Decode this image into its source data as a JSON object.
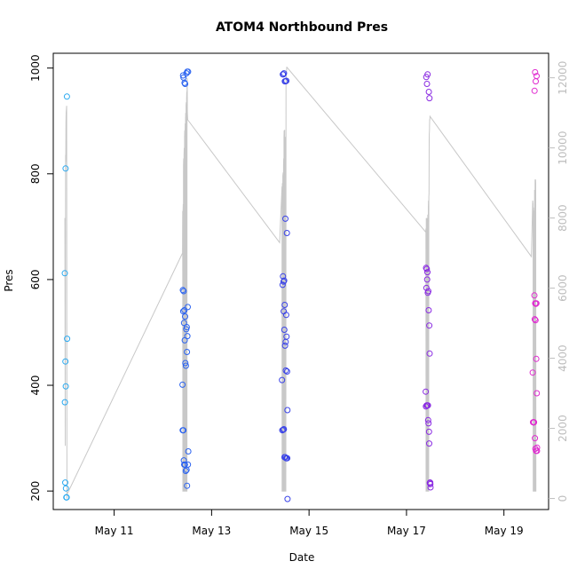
{
  "chart_data": {
    "type": "scatter",
    "title": "ATOM4 Northbound Pres",
    "xlabel": "Date",
    "ylabel": "Pres",
    "x_date_range": [
      "2021-05-09T18:00",
      "2021-05-19T22:00"
    ],
    "ylim": [
      165,
      1028
    ],
    "x_ticks": [
      "May 11",
      "May 13",
      "May 15",
      "May 17",
      "May 19"
    ],
    "y_ticks": [
      200,
      400,
      600,
      800,
      1000
    ],
    "secondary_axis": {
      "side": "right",
      "color": "#bdbdbd",
      "ticks": [
        0,
        2000,
        4000,
        6000,
        8000,
        10000,
        12000
      ],
      "ylim": [
        -315,
        12700
      ]
    },
    "grid": false,
    "point_style": "open-circle",
    "series": [
      {
        "color": "#29a9f0",
        "points": [
          [
            "2021-05-09T23:40",
            612
          ],
          [
            "2021-05-09T23:45",
            368
          ],
          [
            "2021-05-09T23:55",
            216
          ],
          [
            "2021-05-10T00:00",
            445
          ],
          [
            "2021-05-10T00:05",
            810
          ],
          [
            "2021-05-10T00:10",
            398
          ],
          [
            "2021-05-10T00:15",
            205
          ],
          [
            "2021-05-10T00:25",
            188
          ],
          [
            "2021-05-10T00:30",
            188
          ],
          [
            "2021-05-10T00:35",
            188
          ],
          [
            "2021-05-10T00:45",
            946
          ],
          [
            "2021-05-10T00:50",
            488
          ]
        ]
      },
      {
        "color": "#2b63f0",
        "points": [
          [
            "2021-05-12T09:40",
            401
          ],
          [
            "2021-05-12T09:45",
            315
          ],
          [
            "2021-05-12T09:50",
            580
          ],
          [
            "2021-05-12T09:55",
            986
          ],
          [
            "2021-05-12T10:00",
            540
          ],
          [
            "2021-05-12T10:05",
            315
          ],
          [
            "2021-05-12T10:10",
            982
          ],
          [
            "2021-05-12T10:15",
            578
          ],
          [
            "2021-05-12T10:20",
            258
          ],
          [
            "2021-05-12T10:25",
            518
          ],
          [
            "2021-05-12T10:30",
            250
          ],
          [
            "2021-05-12T10:35",
            542
          ],
          [
            "2021-05-12T10:40",
            972
          ],
          [
            "2021-05-12T10:45",
            485
          ],
          [
            "2021-05-12T10:50",
            250
          ],
          [
            "2021-05-12T10:55",
            530
          ],
          [
            "2021-05-12T11:00",
            970
          ],
          [
            "2021-05-12T11:05",
            442
          ],
          [
            "2021-05-12T11:15",
            238
          ],
          [
            "2021-05-12T11:20",
            437
          ],
          [
            "2021-05-12T11:30",
            506
          ],
          [
            "2021-05-12T11:35",
            990
          ],
          [
            "2021-05-12T11:40",
            240
          ],
          [
            "2021-05-12T11:45",
            510
          ],
          [
            "2021-05-12T11:50",
            463
          ],
          [
            "2021-05-12T11:55",
            210
          ],
          [
            "2021-05-12T12:00",
            993
          ],
          [
            "2021-05-12T12:05",
            493
          ],
          [
            "2021-05-12T12:15",
            548
          ],
          [
            "2021-05-12T12:20",
            250
          ],
          [
            "2021-05-12T12:25",
            993
          ],
          [
            "2021-05-12T12:30",
            275
          ]
        ]
      },
      {
        "color": "#3a43e8",
        "points": [
          [
            "2021-05-14T10:40",
            410
          ],
          [
            "2021-05-14T10:50",
            315
          ],
          [
            "2021-05-14T11:00",
            590
          ],
          [
            "2021-05-14T11:05",
            988
          ],
          [
            "2021-05-14T11:10",
            606
          ],
          [
            "2021-05-14T11:15",
            316
          ],
          [
            "2021-05-14T11:20",
            988
          ],
          [
            "2021-05-14T11:25",
            596
          ],
          [
            "2021-05-14T11:30",
            540
          ],
          [
            "2021-05-14T11:35",
            317
          ],
          [
            "2021-05-14T11:40",
            990
          ],
          [
            "2021-05-14T11:45",
            598
          ],
          [
            "2021-05-14T11:50",
            505
          ],
          [
            "2021-05-14T11:55",
            264
          ],
          [
            "2021-05-14T12:00",
            552
          ],
          [
            "2021-05-14T12:05",
            975
          ],
          [
            "2021-05-14T12:10",
            475
          ],
          [
            "2021-05-14T12:15",
            264
          ],
          [
            "2021-05-14T12:20",
            715
          ],
          [
            "2021-05-14T12:25",
            975
          ],
          [
            "2021-05-14T12:30",
            482
          ],
          [
            "2021-05-14T12:35",
            428
          ],
          [
            "2021-05-14T12:40",
            262
          ],
          [
            "2021-05-14T12:45",
            533
          ],
          [
            "2021-05-14T12:50",
            976
          ],
          [
            "2021-05-14T12:55",
            492
          ],
          [
            "2021-05-14T13:00",
            262
          ],
          [
            "2021-05-14T13:05",
            688
          ],
          [
            "2021-05-14T13:10",
            426
          ],
          [
            "2021-05-14T13:15",
            262
          ],
          [
            "2021-05-14T13:20",
            353
          ],
          [
            "2021-05-14T13:25",
            185
          ]
        ]
      },
      {
        "color": "#8a2be2",
        "points": [
          [
            "2021-05-17T09:30",
            388
          ],
          [
            "2021-05-17T09:35",
            360
          ],
          [
            "2021-05-17T09:40",
            622
          ],
          [
            "2021-05-17T09:45",
            983
          ],
          [
            "2021-05-17T09:50",
            584
          ],
          [
            "2021-05-17T09:55",
            362
          ],
          [
            "2021-05-17T10:00",
            620
          ],
          [
            "2021-05-17T10:05",
            970
          ],
          [
            "2021-05-17T10:10",
            600
          ],
          [
            "2021-05-17T10:15",
            362
          ],
          [
            "2021-05-17T10:20",
            614
          ],
          [
            "2021-05-17T10:25",
            988
          ],
          [
            "2021-05-17T10:30",
            575
          ],
          [
            "2021-05-17T10:35",
            362
          ],
          [
            "2021-05-17T10:40",
            334
          ],
          [
            "2021-05-17T10:45",
            578
          ],
          [
            "2021-05-17T10:50",
            328
          ],
          [
            "2021-05-17T10:55",
            542
          ],
          [
            "2021-05-17T11:00",
            955
          ],
          [
            "2021-05-17T11:05",
            312
          ],
          [
            "2021-05-17T11:10",
            290
          ],
          [
            "2021-05-17T11:15",
            513
          ],
          [
            "2021-05-17T11:20",
            943
          ],
          [
            "2021-05-17T11:25",
            460
          ],
          [
            "2021-05-17T11:30",
            215
          ],
          [
            "2021-05-17T11:35",
            216
          ],
          [
            "2021-05-17T11:40",
            216
          ],
          [
            "2021-05-17T11:45",
            213
          ],
          [
            "2021-05-17T11:50",
            207
          ]
        ]
      },
      {
        "color": "#e02bd0",
        "points": [
          [
            "2021-05-19T14:10",
            424
          ],
          [
            "2021-05-19T14:20",
            330
          ],
          [
            "2021-05-19T14:25",
            330
          ],
          [
            "2021-05-19T14:30",
            330
          ],
          [
            "2021-05-19T14:35",
            330
          ],
          [
            "2021-05-19T14:40",
            330
          ],
          [
            "2021-05-19T14:45",
            330
          ],
          [
            "2021-05-19T14:50",
            330
          ],
          [
            "2021-05-19T15:00",
            570
          ],
          [
            "2021-05-19T15:05",
            957
          ],
          [
            "2021-05-19T15:10",
            525
          ],
          [
            "2021-05-19T15:15",
            300
          ],
          [
            "2021-05-19T15:20",
            992
          ],
          [
            "2021-05-19T15:25",
            555
          ],
          [
            "2021-05-19T15:30",
            280
          ],
          [
            "2021-05-19T15:35",
            523
          ],
          [
            "2021-05-19T15:40",
            975
          ],
          [
            "2021-05-19T15:45",
            554
          ],
          [
            "2021-05-19T15:50",
            276
          ],
          [
            "2021-05-19T15:55",
            450
          ],
          [
            "2021-05-19T16:00",
            555
          ],
          [
            "2021-05-19T16:05",
            985
          ],
          [
            "2021-05-19T16:10",
            385
          ],
          [
            "2021-05-19T16:15",
            276
          ],
          [
            "2021-05-19T16:20",
            282
          ]
        ]
      }
    ],
    "depth_line": {
      "color": "#c8c8c8",
      "points": [
        [
          "2021-05-09T23:45",
          8000
        ],
        [
          "2021-05-09T23:55",
          1500
        ],
        [
          "2021-05-10T00:05",
          9800
        ],
        [
          "2021-05-10T00:10",
          9600
        ],
        [
          "2021-05-10T00:15",
          10700
        ],
        [
          "2021-05-10T00:20",
          11000
        ],
        [
          "2021-05-10T00:35",
          11200
        ],
        [
          "2021-05-10T00:45",
          0
        ],
        [
          "2021-05-10T00:50",
          120
        ],
        [
          "2021-05-12T09:40",
          7000
        ],
        [
          "2021-05-12T09:45",
          8200
        ],
        [
          "2021-05-12T09:50",
          200
        ],
        [
          "2021-05-12T09:55",
          8200
        ],
        [
          "2021-05-12T10:00",
          8400
        ],
        [
          "2021-05-12T10:05",
          200
        ],
        [
          "2021-05-12T10:10",
          9500
        ],
        [
          "2021-05-12T10:15",
          9700
        ],
        [
          "2021-05-12T10:20",
          200
        ],
        [
          "2021-05-12T10:25",
          9800
        ],
        [
          "2021-05-12T10:30",
          10000
        ],
        [
          "2021-05-12T10:35",
          200
        ],
        [
          "2021-05-12T10:40",
          10300
        ],
        [
          "2021-05-12T10:45",
          10500
        ],
        [
          "2021-05-12T10:50",
          200
        ],
        [
          "2021-05-12T10:55",
          10500
        ],
        [
          "2021-05-12T11:00",
          10700
        ],
        [
          "2021-05-12T11:05",
          200
        ],
        [
          "2021-05-12T11:10",
          10800
        ],
        [
          "2021-05-12T11:15",
          11000
        ],
        [
          "2021-05-12T11:20",
          200
        ],
        [
          "2021-05-12T11:25",
          11200
        ],
        [
          "2021-05-12T11:30",
          11300
        ],
        [
          "2021-05-12T11:35",
          200
        ],
        [
          "2021-05-12T11:40",
          11400
        ],
        [
          "2021-05-12T11:45",
          11600
        ],
        [
          "2021-05-12T11:50",
          200
        ],
        [
          "2021-05-12T11:55",
          11800
        ],
        [
          "2021-05-12T12:00",
          12000
        ],
        [
          "2021-05-12T12:05",
          11000
        ],
        [
          "2021-05-12T12:15",
          10800
        ],
        [
          "2021-05-14T09:30",
          7300
        ],
        [
          "2021-05-14T10:40",
          8900
        ],
        [
          "2021-05-14T10:45",
          200
        ],
        [
          "2021-05-14T10:50",
          8900
        ],
        [
          "2021-05-14T10:55",
          9000
        ],
        [
          "2021-05-14T11:00",
          200
        ],
        [
          "2021-05-14T11:05",
          9200
        ],
        [
          "2021-05-14T11:15",
          9300
        ],
        [
          "2021-05-14T11:20",
          200
        ],
        [
          "2021-05-14T11:25",
          9500
        ],
        [
          "2021-05-14T11:30",
          9700
        ],
        [
          "2021-05-14T11:35",
          200
        ],
        [
          "2021-05-14T11:40",
          10300
        ],
        [
          "2021-05-14T11:45",
          10500
        ],
        [
          "2021-05-14T11:50",
          200
        ],
        [
          "2021-05-14T11:55",
          10500
        ],
        [
          "2021-05-14T12:00",
          10500
        ],
        [
          "2021-05-14T12:05",
          200
        ],
        [
          "2021-05-14T12:10",
          10300
        ],
        [
          "2021-05-14T12:15",
          10300
        ],
        [
          "2021-05-14T12:20",
          200
        ],
        [
          "2021-05-14T12:25",
          10200
        ],
        [
          "2021-05-14T12:30",
          10300
        ],
        [
          "2021-05-14T12:35",
          200
        ],
        [
          "2021-05-14T12:40",
          12000
        ],
        [
          "2021-05-14T12:45",
          12000
        ],
        [
          "2021-05-14T12:50",
          12100
        ],
        [
          "2021-05-14T13:00",
          12300
        ],
        [
          "2021-05-14T13:05",
          12300
        ],
        [
          "2021-05-17T09:30",
          7600
        ],
        [
          "2021-05-17T09:35",
          7700
        ],
        [
          "2021-05-17T09:40",
          200
        ],
        [
          "2021-05-17T09:45",
          8000
        ],
        [
          "2021-05-17T09:50",
          7900
        ],
        [
          "2021-05-17T09:55",
          200
        ],
        [
          "2021-05-17T10:00",
          7900
        ],
        [
          "2021-05-17T10:05",
          8000
        ],
        [
          "2021-05-17T10:10",
          200
        ],
        [
          "2021-05-17T10:15",
          7800
        ],
        [
          "2021-05-17T10:20",
          7900
        ],
        [
          "2021-05-17T10:25",
          200
        ],
        [
          "2021-05-17T10:30",
          8100
        ],
        [
          "2021-05-17T10:35",
          8000
        ],
        [
          "2021-05-17T10:40",
          200
        ],
        [
          "2021-05-17T10:45",
          8300
        ],
        [
          "2021-05-17T10:50",
          8500
        ],
        [
          "2021-05-17T10:55",
          200
        ],
        [
          "2021-05-17T11:00",
          8600
        ],
        [
          "2021-05-17T11:05",
          8700
        ],
        [
          "2021-05-17T11:10",
          10300
        ],
        [
          "2021-05-17T11:15",
          10400
        ],
        [
          "2021-05-17T11:20",
          10500
        ],
        [
          "2021-05-17T11:25",
          10800
        ],
        [
          "2021-05-17T11:30",
          10800
        ],
        [
          "2021-05-17T11:35",
          10900
        ],
        [
          "2021-05-19T13:30",
          6900
        ],
        [
          "2021-05-19T14:10",
          8500
        ],
        [
          "2021-05-19T14:20",
          8400
        ],
        [
          "2021-05-19T14:25",
          200
        ],
        [
          "2021-05-19T14:30",
          8200
        ],
        [
          "2021-05-19T14:35",
          8200
        ],
        [
          "2021-05-19T14:40",
          200
        ],
        [
          "2021-05-19T14:50",
          8100
        ],
        [
          "2021-05-19T14:55",
          8300
        ],
        [
          "2021-05-19T15:00",
          200
        ],
        [
          "2021-05-19T15:05",
          8800
        ],
        [
          "2021-05-19T15:10",
          8700
        ],
        [
          "2021-05-19T15:15",
          200
        ],
        [
          "2021-05-19T15:20",
          9100
        ],
        [
          "2021-05-19T15:25",
          9000
        ],
        [
          "2021-05-19T15:30",
          200
        ],
        [
          "2021-05-19T15:35",
          9100
        ],
        [
          "2021-05-19T15:40",
          9000
        ],
        [
          "2021-05-19T15:45",
          200
        ]
      ]
    }
  }
}
